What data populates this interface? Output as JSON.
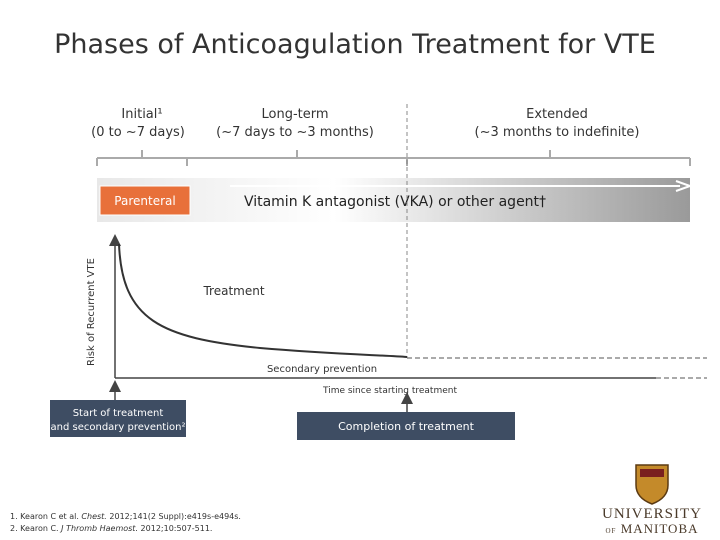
{
  "title": "Phases of Anticoagulation Treatment for VTE",
  "phases": [
    {
      "name": "Initial¹",
      "range": "(0 to ~7 days)"
    },
    {
      "name": "Long-term",
      "range": "(~7 days to ~3 months)"
    },
    {
      "name": "Extended",
      "range": "(~3 months to indefinite)"
    }
  ],
  "parenteral": "Parenteral",
  "agent": "Vitamin K antagonist (VKA) or other agent†",
  "y_axis_label": "Risk of Recurrent VTE",
  "x_axis_label": "Time since starting treatment",
  "curve_labels": {
    "treatment": "Treatment",
    "secondary": "Secondary prevention"
  },
  "start_box": [
    "Start of treatment",
    "and secondary prevention²"
  ],
  "completion_box": "Completion of treatment",
  "footnotes": [
    {
      "authors": "1. Kearon C et al.",
      "journal": "Chest.",
      "citation": "2012;141(2 Suppl):e419s-e494s."
    },
    {
      "authors": "2. Kearon C.",
      "journal": "J Thromb Haemost.",
      "citation": "2012;10:507-511."
    }
  ],
  "logo": {
    "line1": "UNIVERSITY",
    "line2_small": "OF",
    "line2": "MANITOBA"
  }
}
